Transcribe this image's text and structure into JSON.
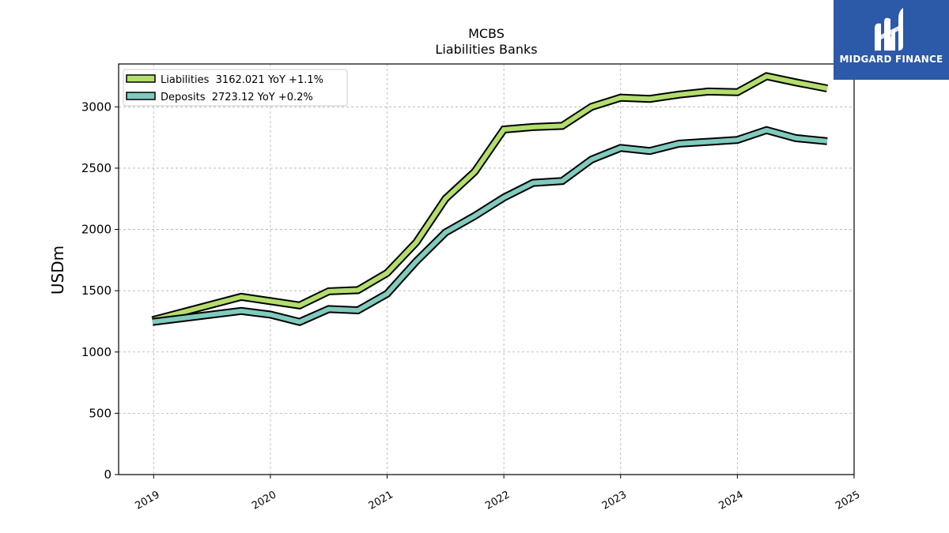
{
  "chart_data": {
    "type": "line",
    "title": "MCBS",
    "subtitle": "Liabilities Banks",
    "xlabel": "",
    "ylabel": "USDm",
    "xlim": [
      2018.7,
      2025.0
    ],
    "ylim": [
      0,
      3350
    ],
    "grid": true,
    "legend_position": "top-left",
    "x_ticks": [
      {
        "value": 2019,
        "label": "2019"
      },
      {
        "value": 2020,
        "label": "2020"
      },
      {
        "value": 2021,
        "label": "2021"
      },
      {
        "value": 2022,
        "label": "2022"
      },
      {
        "value": 2023,
        "label": "2023"
      },
      {
        "value": 2024,
        "label": "2024"
      },
      {
        "value": 2025,
        "label": "2025"
      }
    ],
    "y_ticks": [
      {
        "value": 0,
        "label": "0"
      },
      {
        "value": 500,
        "label": "500"
      },
      {
        "value": 1000,
        "label": "1000"
      },
      {
        "value": 1500,
        "label": "1500"
      },
      {
        "value": 2000,
        "label": "2000"
      },
      {
        "value": 2500,
        "label": "2500"
      },
      {
        "value": 3000,
        "label": "3000"
      }
    ],
    "series": [
      {
        "name": "Liabilities",
        "legend_label": "Liabilities  3162.021 YoY +1.1%",
        "color": "#b3dd6c",
        "points": [
          [
            2018.99,
            1260
          ],
          [
            2019.75,
            1450
          ],
          [
            2020.25,
            1380
          ],
          [
            2020.5,
            1495
          ],
          [
            2020.75,
            1505
          ],
          [
            2021.0,
            1645
          ],
          [
            2021.25,
            1895
          ],
          [
            2021.5,
            2250
          ],
          [
            2021.75,
            2470
          ],
          [
            2022.0,
            2815
          ],
          [
            2022.25,
            2835
          ],
          [
            2022.5,
            2845
          ],
          [
            2022.75,
            3000
          ],
          [
            2023.0,
            3075
          ],
          [
            2023.25,
            3065
          ],
          [
            2023.5,
            3100
          ],
          [
            2023.75,
            3125
          ],
          [
            2024.0,
            3120
          ],
          [
            2024.25,
            3250
          ],
          [
            2024.5,
            3200
          ],
          [
            2024.77,
            3150
          ]
        ]
      },
      {
        "name": "Deposits",
        "legend_label": "Deposits  2723.12 YoY +0.2%",
        "color": "#7fcbbd",
        "points": [
          [
            2018.99,
            1245
          ],
          [
            2019.75,
            1335
          ],
          [
            2020.0,
            1305
          ],
          [
            2020.25,
            1245
          ],
          [
            2020.5,
            1350
          ],
          [
            2020.75,
            1340
          ],
          [
            2021.0,
            1475
          ],
          [
            2021.25,
            1740
          ],
          [
            2021.5,
            1975
          ],
          [
            2021.75,
            2110
          ],
          [
            2022.0,
            2260
          ],
          [
            2022.25,
            2380
          ],
          [
            2022.5,
            2395
          ],
          [
            2022.75,
            2570
          ],
          [
            2023.0,
            2665
          ],
          [
            2023.25,
            2640
          ],
          [
            2023.5,
            2700
          ],
          [
            2023.75,
            2715
          ],
          [
            2024.0,
            2730
          ],
          [
            2024.25,
            2810
          ],
          [
            2024.5,
            2745
          ],
          [
            2024.77,
            2720
          ]
        ]
      }
    ]
  },
  "brand": {
    "name": "MIDGARD FINANCE",
    "color": "#2c59a8",
    "icon": "midgard-logo-icon"
  }
}
